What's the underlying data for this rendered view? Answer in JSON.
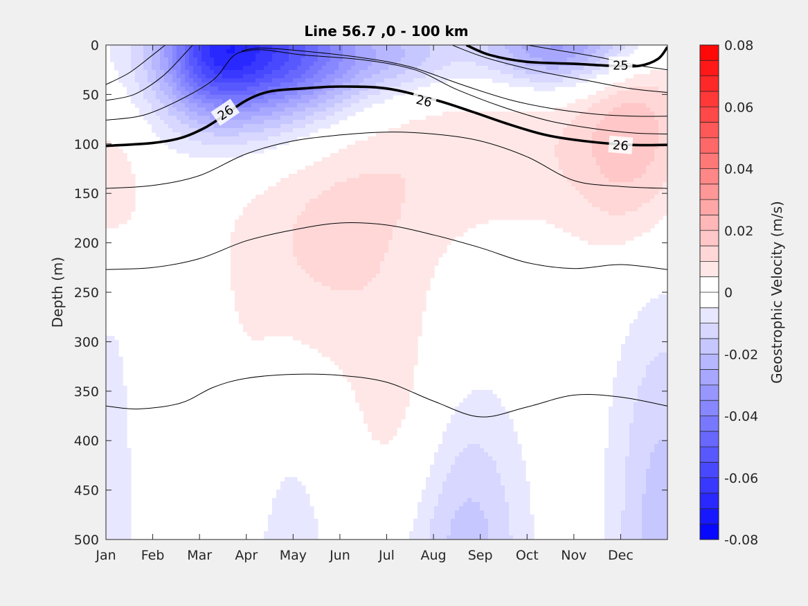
{
  "chart_data": {
    "type": "heatmap",
    "title": "Line 56.7 ,0 - 100 km",
    "xlabel": "",
    "ylabel": "Depth (m)",
    "x_categories": [
      "Jan",
      "Feb",
      "Mar",
      "Apr",
      "May",
      "Jun",
      "Jul",
      "Aug",
      "Sep",
      "Oct",
      "Nov",
      "Dec"
    ],
    "x_range_months": [
      0,
      12
    ],
    "y_ticks": [
      0,
      50,
      100,
      150,
      200,
      250,
      300,
      350,
      400,
      450,
      500
    ],
    "ylim": [
      0,
      500
    ],
    "y_reversed": true,
    "colorbar": {
      "label": "Geostrophic Velocity (m/s)",
      "ticks": [
        0.08,
        0.06,
        0.04,
        0.02,
        0,
        -0.02,
        -0.04,
        -0.06,
        -0.08
      ],
      "tick_labels": [
        "0.08",
        "0.06",
        "0.04",
        "0.02",
        "0",
        "-0.02",
        "-0.04",
        "-0.06",
        "-0.08"
      ],
      "range": [
        -0.08,
        0.08
      ],
      "levels": 32,
      "colors": {
        "negative": "#0000ff",
        "zero": "#ffffff",
        "positive": "#ff0000"
      }
    },
    "velocity_features": [
      {
        "month": 3.0,
        "depth": 0,
        "sx": 1.4,
        "sy": 60,
        "value": -0.048
      },
      {
        "month": 2.3,
        "depth": 10,
        "sx": 0.7,
        "sy": 40,
        "value": -0.022
      },
      {
        "month": 4.6,
        "depth": 15,
        "sx": 1.2,
        "sy": 35,
        "value": -0.02
      },
      {
        "month": 9.8,
        "depth": 0,
        "sx": 1.3,
        "sy": 30,
        "value": -0.034
      },
      {
        "month": 6.5,
        "depth": 10,
        "sx": 0.8,
        "sy": 25,
        "value": -0.012
      },
      {
        "month": 0.1,
        "depth": 140,
        "sx": 0.55,
        "sy": 60,
        "value": 0.009
      },
      {
        "month": 11.3,
        "depth": 80,
        "sx": 0.9,
        "sy": 90,
        "value": 0.016
      },
      {
        "month": 4.8,
        "depth": 200,
        "sx": 1.6,
        "sy": 90,
        "value": 0.011
      },
      {
        "month": 6.3,
        "depth": 380,
        "sx": 0.8,
        "sy": 80,
        "value": 0.007
      },
      {
        "month": 3.0,
        "depth": 480,
        "sx": 0.5,
        "sy": 140,
        "value": 0.005
      },
      {
        "month": 8.6,
        "depth": 110,
        "sx": 2.5,
        "sy": 60,
        "value": 0.008
      },
      {
        "month": 7.7,
        "depth": 520,
        "sx": 0.9,
        "sy": 120,
        "value": -0.018
      },
      {
        "month": 3.7,
        "depth": 540,
        "sx": 0.8,
        "sy": 110,
        "value": -0.01
      },
      {
        "month": 11.9,
        "depth": 520,
        "sx": 0.8,
        "sy": 200,
        "value": -0.018
      },
      {
        "month": 0.1,
        "depth": 470,
        "sx": 0.35,
        "sy": 160,
        "value": -0.01
      }
    ],
    "isopycnals": [
      {
        "label": "",
        "bold": false,
        "points": [
          [
            0,
            40
          ],
          [
            0.5,
            28
          ],
          [
            1,
            10
          ],
          [
            1.4,
            -5
          ]
        ]
      },
      {
        "label": "",
        "bold": false,
        "points": [
          [
            0,
            56
          ],
          [
            0.6,
            50
          ],
          [
            1.2,
            32
          ],
          [
            1.7,
            8
          ],
          [
            1.95,
            -5
          ]
        ]
      },
      {
        "label": "",
        "bold": false,
        "points": [
          [
            0,
            76
          ],
          [
            0.8,
            71
          ],
          [
            1.6,
            55
          ],
          [
            2.3,
            35
          ],
          [
            2.7,
            12
          ],
          [
            3.0,
            6
          ],
          [
            3.4,
            5
          ],
          [
            4.2,
            10
          ],
          [
            5.5,
            15
          ],
          [
            6.6,
            25
          ],
          [
            7.5,
            45
          ],
          [
            8.5,
            63
          ],
          [
            9.5,
            77
          ],
          [
            10.5,
            85
          ],
          [
            11.3,
            89
          ],
          [
            12,
            90
          ]
        ]
      },
      {
        "label": "",
        "bold": false,
        "points": [
          [
            2.9,
            6
          ],
          [
            3.3,
            3
          ],
          [
            4.2,
            6
          ],
          [
            5.5,
            13
          ],
          [
            6.5,
            22
          ],
          [
            7.6,
            40
          ],
          [
            8.6,
            55
          ],
          [
            9.5,
            64
          ],
          [
            10.5,
            70
          ],
          [
            11.3,
            72
          ],
          [
            12,
            72
          ]
        ]
      },
      {
        "label": "",
        "bold": false,
        "points": [
          [
            7.2,
            -5
          ],
          [
            7.5,
            2
          ],
          [
            8.2,
            14
          ],
          [
            9.3,
            27
          ],
          [
            10.3,
            36
          ],
          [
            11.2,
            44
          ],
          [
            12,
            48
          ]
        ]
      },
      {
        "label": "",
        "bold": false,
        "points": [
          [
            8.4,
            -5
          ],
          [
            9.5,
            4
          ],
          [
            10.5,
            12
          ],
          [
            11.3,
            20
          ],
          [
            12,
            25
          ]
        ]
      },
      {
        "label": "",
        "bold": false,
        "points": [
          [
            0,
            145
          ],
          [
            1,
            142
          ],
          [
            2,
            132
          ],
          [
            3,
            110
          ],
          [
            4,
            97
          ],
          [
            5,
            91
          ],
          [
            6,
            88
          ],
          [
            7,
            90
          ],
          [
            8,
            97
          ],
          [
            9,
            113
          ],
          [
            10,
            137
          ],
          [
            11,
            143
          ],
          [
            12,
            145
          ]
        ]
      },
      {
        "label": "",
        "bold": false,
        "points": [
          [
            0,
            227
          ],
          [
            1,
            225
          ],
          [
            2,
            216
          ],
          [
            3,
            198
          ],
          [
            4,
            187
          ],
          [
            5,
            180
          ],
          [
            6,
            182
          ],
          [
            7,
            192
          ],
          [
            8,
            205
          ],
          [
            9,
            220
          ],
          [
            10,
            226
          ],
          [
            11,
            222
          ],
          [
            12,
            227
          ]
        ]
      },
      {
        "label": "",
        "bold": false,
        "points": [
          [
            0,
            365
          ],
          [
            0.7,
            368
          ],
          [
            1.6,
            362
          ],
          [
            2.3,
            346
          ],
          [
            3,
            337
          ],
          [
            4,
            333
          ],
          [
            5,
            334
          ],
          [
            6,
            341
          ],
          [
            7,
            360
          ],
          [
            8,
            376
          ],
          [
            9,
            366
          ],
          [
            10,
            354
          ],
          [
            11,
            356
          ],
          [
            12,
            365
          ]
        ]
      },
      {
        "label": "26",
        "bold": true,
        "points": [
          [
            0,
            102
          ],
          [
            1,
            99
          ],
          [
            1.6,
            94
          ],
          [
            2.1,
            84
          ],
          [
            2.5,
            72
          ],
          [
            3,
            56
          ],
          [
            3.5,
            47
          ],
          [
            4.2,
            44
          ],
          [
            5,
            42
          ],
          [
            6,
            44
          ],
          [
            7,
            55
          ],
          [
            7.8,
            67
          ],
          [
            8.6,
            80
          ],
          [
            9.4,
            91
          ],
          [
            10.2,
            97
          ],
          [
            11.2,
            101
          ],
          [
            12,
            101
          ]
        ],
        "label_positions": [
          [
            2.55,
            68
          ],
          [
            6.8,
            56
          ],
          [
            11.0,
            101
          ]
        ]
      },
      {
        "label": "25",
        "bold": true,
        "points": [
          [
            7.7,
            0
          ],
          [
            8.2,
            10
          ],
          [
            9,
            17
          ],
          [
            10,
            19
          ],
          [
            10.8,
            21
          ],
          [
            11.4,
            21
          ],
          [
            11.8,
            14
          ],
          [
            12,
            2
          ]
        ],
        "label_positions": [
          [
            11.0,
            20
          ]
        ]
      }
    ]
  }
}
